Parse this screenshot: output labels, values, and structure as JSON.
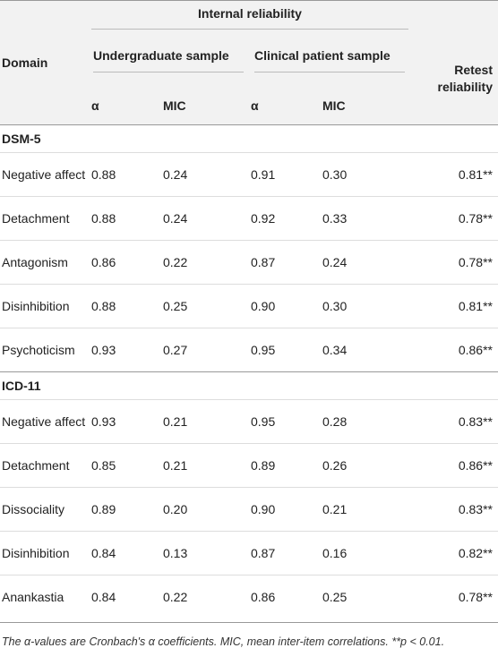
{
  "table": {
    "header": {
      "domain": "Domain",
      "group": "Internal reliability",
      "samples": [
        "Undergraduate sample",
        "Clinical patient sample"
      ],
      "retest": "Retest reliability",
      "subheaders": [
        "α",
        "MIC",
        "α",
        "MIC"
      ]
    },
    "sections": [
      {
        "name": "DSM-5",
        "rows": [
          [
            "Negative affect",
            "0.88",
            "0.24",
            "0.91",
            "0.30",
            "0.81**"
          ],
          [
            "Detachment",
            "0.88",
            "0.24",
            "0.92",
            "0.33",
            "0.78**"
          ],
          [
            "Antagonism",
            "0.86",
            "0.22",
            "0.87",
            "0.24",
            "0.78**"
          ],
          [
            "Disinhibition",
            "0.88",
            "0.25",
            "0.90",
            "0.30",
            "0.81**"
          ],
          [
            "Psychoticism",
            "0.93",
            "0.27",
            "0.95",
            "0.34",
            "0.86**"
          ]
        ]
      },
      {
        "name": "ICD-11",
        "rows": [
          [
            "Negative affect",
            "0.93",
            "0.21",
            "0.95",
            "0.28",
            "0.83**"
          ],
          [
            "Detachment",
            "0.85",
            "0.21",
            "0.89",
            "0.26",
            "0.86**"
          ],
          [
            "Dissociality",
            "0.89",
            "0.20",
            "0.90",
            "0.21",
            "0.83**"
          ],
          [
            "Disinhibition",
            "0.84",
            "0.13",
            "0.87",
            "0.16",
            "0.82**"
          ],
          [
            "Anankastia",
            "0.84",
            "0.22",
            "0.86",
            "0.25",
            "0.78**"
          ]
        ]
      }
    ]
  },
  "footnote": "The α-values are Cronbach's α coefficients. MIC, mean inter-item correlations. **p < 0.01."
}
